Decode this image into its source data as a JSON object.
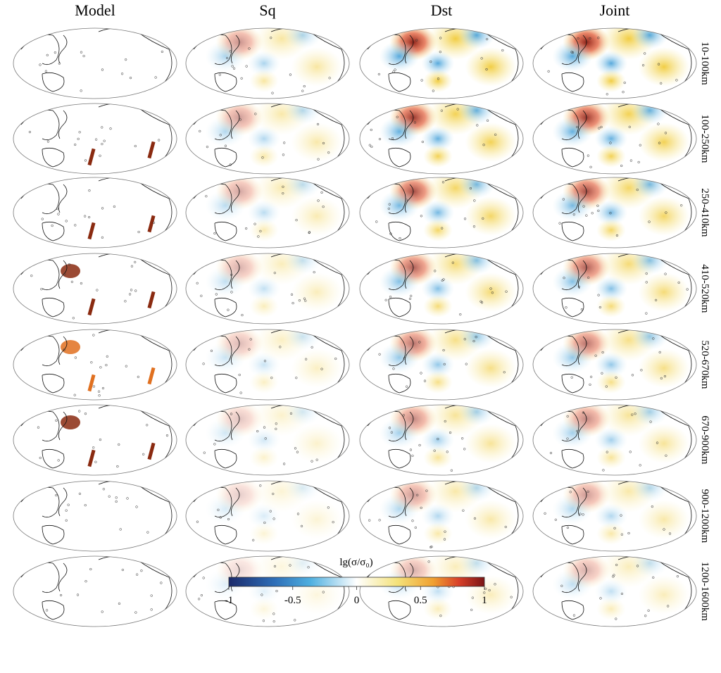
{
  "columns": [
    "Model",
    "Sq",
    "Dst",
    "Joint"
  ],
  "rows": [
    "10-100km",
    "100-250km",
    "250-410km",
    "410-520km",
    "520-670km",
    "670-900km",
    "900-1200km",
    "1200-1600km"
  ],
  "colorbar": {
    "label": "lg(σ/σ₀)",
    "lim": [
      -1,
      1
    ],
    "ticks": [
      -1,
      -0.5,
      0,
      0.5,
      1
    ]
  }
}
